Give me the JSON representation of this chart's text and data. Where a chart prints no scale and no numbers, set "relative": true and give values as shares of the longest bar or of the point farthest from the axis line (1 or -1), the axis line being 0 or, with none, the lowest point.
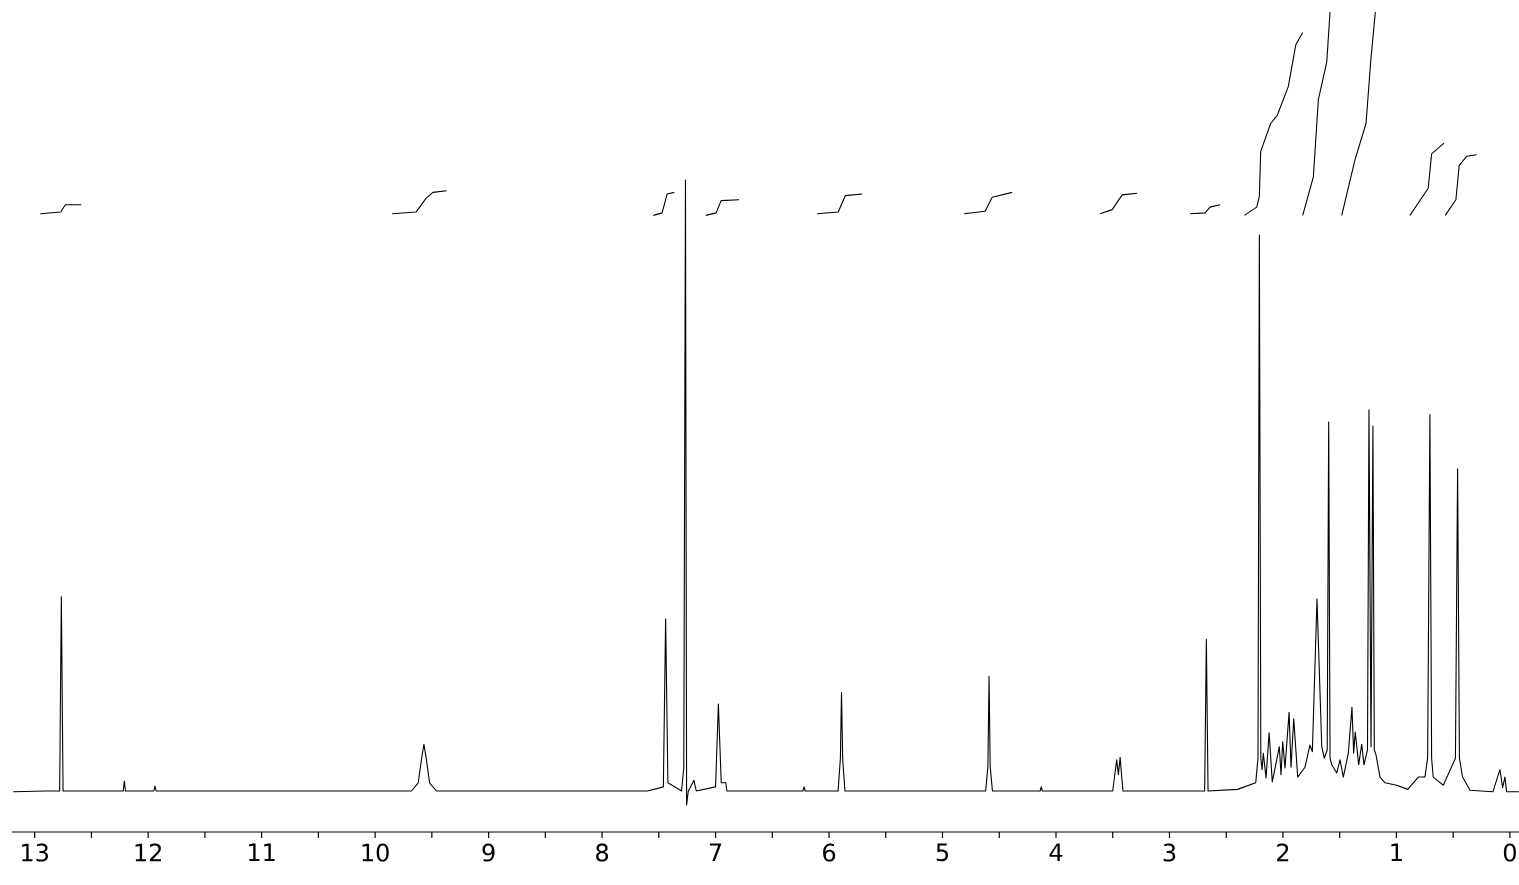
{
  "chart_data": {
    "type": "line",
    "relative": true,
    "xlim": [
      13.2,
      -0.08
    ],
    "tick_labels": "x",
    "xticks": [
      13,
      {
        "value": 12.5,
        "label": null
      },
      12,
      {
        "value": 11.5,
        "label": null
      },
      11,
      {
        "value": 10.5,
        "label": null
      },
      10,
      {
        "value": 9.5,
        "label": null
      },
      9,
      {
        "value": 8.5,
        "label": null
      },
      8,
      {
        "value": 7.5,
        "label": null
      },
      7,
      {
        "value": 6.5,
        "label": null
      },
      6,
      {
        "value": 5.5,
        "label": null
      },
      5,
      {
        "value": 4.5,
        "label": null
      },
      4,
      {
        "value": 3.5,
        "label": null
      },
      3,
      {
        "value": 2.5,
        "label": null
      },
      2,
      {
        "value": 1.5,
        "label": null
      },
      1,
      {
        "value": 0.5,
        "label": null
      },
      0
    ],
    "series": [
      {
        "color": "#000000",
        "x": [
          13.19,
          12.9,
          12.78,
          12.765,
          12.75,
          12.4,
          12.22,
          12.21,
          12.2,
          11.95,
          11.94,
          11.93,
          9.68,
          9.62,
          9.59,
          9.57,
          9.55,
          9.52,
          9.46,
          7.6,
          7.46,
          7.44,
          7.42,
          7.3,
          7.28,
          7.265,
          7.255,
          7.24,
          7.19,
          7.17,
          7.0,
          6.975,
          6.95,
          6.91,
          6.9,
          6.23,
          6.22,
          6.21,
          5.92,
          5.9,
          5.89,
          5.88,
          5.86,
          4.62,
          4.6,
          4.59,
          4.58,
          4.56,
          4.14,
          4.13,
          4.12,
          3.5,
          3.465,
          3.45,
          3.435,
          3.41,
          2.69,
          2.675,
          2.66,
          2.4,
          2.24,
          2.22,
          2.208,
          2.195,
          2.184,
          2.173,
          2.149,
          2.122,
          2.094,
          2.032,
          2.017,
          2.002,
          1.982,
          1.946,
          1.929,
          1.905,
          1.87,
          1.806,
          1.762,
          1.741,
          1.7,
          1.658,
          1.636,
          1.61,
          1.597,
          1.585,
          1.57,
          1.526,
          1.497,
          1.468,
          1.424,
          1.392,
          1.377,
          1.363,
          1.333,
          1.306,
          1.286,
          1.255,
          1.242,
          1.224,
          1.207,
          1.195,
          1.18,
          1.145,
          1.1,
          0.998,
          0.9,
          0.808,
          0.749,
          0.725,
          0.705,
          0.69,
          0.676,
          0.587,
          0.48,
          0.461,
          0.445,
          0.417,
          0.352,
          0.15,
          0.088,
          0.064,
          0.044,
          0.029,
          -0.079
        ],
        "values": [
          0.049,
          0.05,
          0.05,
          0.287,
          0.05,
          0.05,
          0.05,
          0.062,
          0.05,
          0.05,
          0.056,
          0.05,
          0.05,
          0.06,
          0.09,
          0.107,
          0.09,
          0.06,
          0.05,
          0.05,
          0.055,
          0.26,
          0.06,
          0.05,
          0.078,
          0.795,
          0.033,
          0.05,
          0.063,
          0.05,
          0.055,
          0.156,
          0.06,
          0.06,
          0.05,
          0.05,
          0.055,
          0.05,
          0.05,
          0.09,
          0.17,
          0.09,
          0.05,
          0.05,
          0.08,
          0.19,
          0.08,
          0.05,
          0.05,
          0.055,
          0.05,
          0.05,
          0.088,
          0.07,
          0.091,
          0.05,
          0.05,
          0.235,
          0.05,
          0.052,
          0.06,
          0.09,
          0.728,
          0.09,
          0.076,
          0.096,
          0.066,
          0.121,
          0.061,
          0.104,
          0.07,
          0.11,
          0.078,
          0.146,
          0.079,
          0.138,
          0.067,
          0.079,
          0.106,
          0.098,
          0.284,
          0.104,
          0.09,
          0.1,
          0.5,
          0.09,
          0.082,
          0.072,
          0.088,
          0.067,
          0.096,
          0.152,
          0.096,
          0.122,
          0.082,
          0.107,
          0.082,
          0.1,
          0.515,
          0.104,
          0.495,
          0.1,
          0.094,
          0.067,
          0.06,
          0.057,
          0.052,
          0.067,
          0.067,
          0.09,
          0.509,
          0.09,
          0.067,
          0.057,
          0.09,
          0.443,
          0.09,
          0.067,
          0.051,
          0.049,
          0.076,
          0.054,
          0.067,
          0.049,
          0.049
        ]
      },
      {
        "color": "#000000",
        "x": [
          12.95,
          12.77,
          12.73,
          12.59
        ],
        "values": [
          0.754,
          0.756,
          0.765,
          0.765
        ]
      },
      {
        "color": "#000000",
        "x": [
          9.85,
          9.64,
          9.55,
          9.49,
          9.37
        ],
        "values": [
          0.754,
          0.756,
          0.773,
          0.78,
          0.782
        ]
      },
      {
        "color": "#000000",
        "x": [
          7.548,
          7.471,
          7.427,
          7.363
        ],
        "values": [
          0.752,
          0.755,
          0.778,
          0.78
        ]
      },
      {
        "color": "#000000",
        "x": [
          7.086,
          6.995,
          6.951,
          6.793
        ],
        "values": [
          0.752,
          0.755,
          0.77,
          0.771
        ]
      },
      {
        "color": "#000000",
        "x": [
          6.104,
          5.919,
          5.857,
          5.707
        ],
        "values": [
          0.754,
          0.756,
          0.776,
          0.778
        ]
      },
      {
        "color": "#000000",
        "x": [
          4.809,
          4.624,
          4.562,
          4.386
        ],
        "values": [
          0.754,
          0.757,
          0.774,
          0.78
        ]
      },
      {
        "color": "#000000",
        "x": [
          3.611,
          3.505,
          3.417,
          3.285
        ],
        "values": [
          0.754,
          0.759,
          0.777,
          0.779
        ]
      },
      {
        "color": "#000000",
        "x": [
          2.818,
          2.686,
          2.642,
          2.554
        ],
        "values": [
          0.754,
          0.755,
          0.762,
          0.765
        ]
      },
      {
        "color": "#000000",
        "x": [
          2.34,
          2.231,
          2.208,
          2.196,
          2.108,
          2.05,
          1.953,
          1.887,
          1.826
        ],
        "values": [
          0.752,
          0.762,
          0.775,
          0.83,
          0.864,
          0.874,
          0.909,
          0.96,
          0.975
        ]
      },
      {
        "color": "#000000",
        "x": [
          1.826,
          1.732,
          1.688,
          1.614,
          1.585
        ],
        "values": [
          0.752,
          0.799,
          0.893,
          0.939,
          1.0
        ]
      },
      {
        "color": "#000000",
        "x": [
          1.482,
          1.365,
          1.268,
          1.227,
          1.186
        ],
        "values": [
          0.752,
          0.82,
          0.864,
          0.939,
          1.0
        ]
      },
      {
        "color": "#000000",
        "x": [
          0.881,
          0.72,
          0.69,
          0.581
        ],
        "values": [
          0.752,
          0.785,
          0.827,
          0.84
        ]
      },
      {
        "color": "#000000",
        "x": [
          0.57,
          0.476,
          0.447,
          0.381,
          0.293
        ],
        "values": [
          0.752,
          0.771,
          0.813,
          0.824,
          0.826
        ]
      }
    ]
  }
}
